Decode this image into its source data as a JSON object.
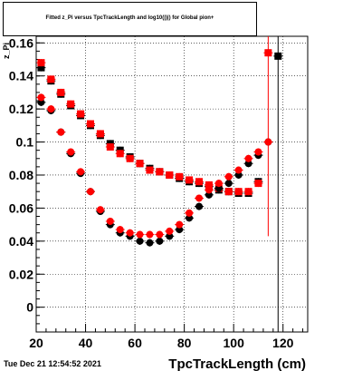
{
  "chart_data": {
    "type": "scatter",
    "title": "Fitted  z_Pi  versus TpcTrackLength and log10(|)|) for Global pion+",
    "xlabel": "TpcTrackLength (cm)",
    "ylabel": "z_Pi",
    "xlim": [
      20,
      130
    ],
    "ylim": [
      -0.015,
      0.164
    ],
    "xticks": [
      "20",
      "40",
      "60",
      "80",
      "100",
      "120"
    ],
    "yticks": [
      "0",
      "0.02",
      "0.04",
      "0.06",
      "0.08",
      "0.1",
      "0.12",
      "0.14",
      "0.16"
    ],
    "grid": true,
    "series": [
      {
        "marker": "square",
        "color": "#000000",
        "points": [
          [
            22,
            0.145
          ],
          [
            26,
            0.137
          ],
          [
            30,
            0.129
          ],
          [
            34,
            0.122
          ],
          [
            38,
            0.116
          ],
          [
            42,
            0.11
          ],
          [
            46,
            0.104
          ],
          [
            50,
            0.099
          ],
          [
            54,
            0.095
          ],
          [
            58,
            0.091
          ],
          [
            62,
            0.087
          ],
          [
            66,
            0.084
          ],
          [
            70,
            0.082
          ],
          [
            74,
            0.08
          ],
          [
            78,
            0.078
          ],
          [
            82,
            0.076
          ],
          [
            86,
            0.075
          ],
          [
            90,
            0.073
          ],
          [
            94,
            0.071
          ],
          [
            98,
            0.07
          ],
          [
            102,
            0.069
          ],
          [
            106,
            0.069
          ],
          [
            110,
            0.076
          ],
          [
            118,
            0.152
          ]
        ]
      },
      {
        "marker": "square",
        "color": "#ff0000",
        "points": [
          [
            22,
            0.148
          ],
          [
            26,
            0.138
          ],
          [
            30,
            0.13
          ],
          [
            34,
            0.123
          ],
          [
            38,
            0.117
          ],
          [
            42,
            0.111
          ],
          [
            46,
            0.105
          ],
          [
            50,
            0.097
          ],
          [
            54,
            0.093
          ],
          [
            58,
            0.09
          ],
          [
            62,
            0.087
          ],
          [
            66,
            0.083
          ],
          [
            70,
            0.082
          ],
          [
            74,
            0.08
          ],
          [
            78,
            0.079
          ],
          [
            82,
            0.077
          ],
          [
            86,
            0.076
          ],
          [
            90,
            0.074
          ],
          [
            94,
            0.072
          ],
          [
            98,
            0.07
          ],
          [
            102,
            0.07
          ],
          [
            106,
            0.07
          ],
          [
            110,
            0.075
          ],
          [
            114,
            0.154
          ]
        ]
      },
      {
        "marker": "circle",
        "color": "#000000",
        "points": [
          [
            22,
            0.124
          ],
          [
            26,
            0.119
          ],
          [
            30,
            0.106
          ],
          [
            34,
            0.093
          ],
          [
            38,
            0.081
          ],
          [
            42,
            0.07
          ],
          [
            46,
            0.058
          ],
          [
            50,
            0.05
          ],
          [
            54,
            0.045
          ],
          [
            58,
            0.043
          ],
          [
            62,
            0.04
          ],
          [
            66,
            0.039
          ],
          [
            70,
            0.04
          ],
          [
            74,
            0.043
          ],
          [
            78,
            0.047
          ],
          [
            82,
            0.054
          ],
          [
            86,
            0.061
          ],
          [
            90,
            0.068
          ],
          [
            94,
            0.072
          ],
          [
            98,
            0.075
          ],
          [
            102,
            0.08
          ],
          [
            106,
            0.087
          ],
          [
            110,
            0.092
          ],
          [
            114,
            0.1
          ]
        ]
      },
      {
        "marker": "circle",
        "color": "#ff0000",
        "points": [
          [
            22,
            0.127
          ],
          [
            26,
            0.12
          ],
          [
            30,
            0.106
          ],
          [
            34,
            0.094
          ],
          [
            38,
            0.082
          ],
          [
            42,
            0.07
          ],
          [
            46,
            0.059
          ],
          [
            50,
            0.052
          ],
          [
            54,
            0.047
          ],
          [
            58,
            0.045
          ],
          [
            62,
            0.044
          ],
          [
            66,
            0.044
          ],
          [
            70,
            0.044
          ],
          [
            74,
            0.046
          ],
          [
            78,
            0.05
          ],
          [
            82,
            0.057
          ],
          [
            86,
            0.066
          ],
          [
            90,
            0.071
          ],
          [
            94,
            0.075
          ],
          [
            98,
            0.079
          ],
          [
            102,
            0.083
          ],
          [
            106,
            0.09
          ],
          [
            110,
            0.094
          ],
          [
            114,
            0.1
          ]
        ]
      }
    ]
  },
  "footer": {
    "timestamp": "Tue Dec 21 12:54:52 2021"
  }
}
